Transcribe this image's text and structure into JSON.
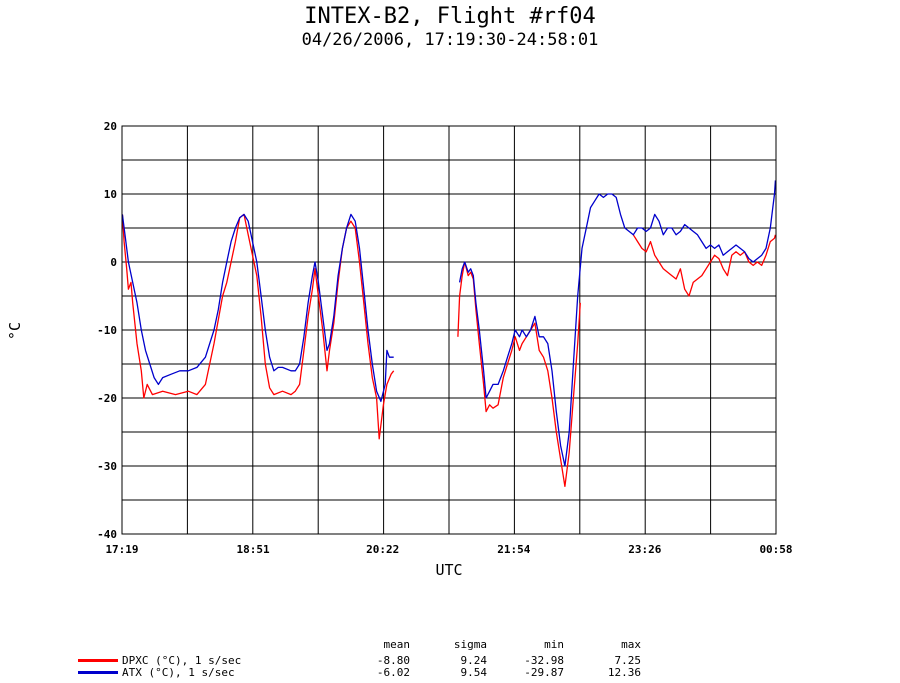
{
  "header": {
    "title": "INTEX-B2, Flight #rf04",
    "subtitle": "04/26/2006, 17:19:30-24:58:01"
  },
  "legend": {
    "stat_headers": [
      "mean",
      "sigma",
      "min",
      "max"
    ],
    "rows": [
      {
        "label": "DPXC (°C), 1 s/sec",
        "color": "#ff0000",
        "mean": "-8.80",
        "sigma": "9.24",
        "min": "-32.98",
        "max": "7.25"
      },
      {
        "label": "ATX (°C), 1 s/sec",
        "color": "#0000cc",
        "mean": "-6.02",
        "sigma": "9.54",
        "min": "-29.87",
        "max": "12.36"
      }
    ]
  },
  "chart_data": {
    "type": "line",
    "xlabel": "UTC",
    "ylabel": "°C",
    "xlim": [
      17.325,
      24.967
    ],
    "ylim": [
      -40,
      20
    ],
    "yticks": [
      -40,
      -30,
      -20,
      -10,
      0,
      10,
      20
    ],
    "xtick_labels": [
      {
        "value": 17.317,
        "label": "17:19"
      },
      {
        "value": 18.85,
        "label": "18:51"
      },
      {
        "value": 20.367,
        "label": "20:22"
      },
      {
        "value": 21.9,
        "label": "21:54"
      },
      {
        "value": 23.433,
        "label": "23:26"
      },
      {
        "value": 24.967,
        "label": "00:58"
      }
    ],
    "grid": true,
    "series": [
      {
        "name": "DPXC (°C), 1 s/sec",
        "color": "#ff0000",
        "segments": [
          [
            [
              17.33,
              7
            ],
            [
              17.35,
              3
            ],
            [
              17.38,
              -1
            ],
            [
              17.4,
              -4
            ],
            [
              17.43,
              -3
            ],
            [
              17.45,
              -6
            ],
            [
              17.5,
              -12
            ],
            [
              17.55,
              -16
            ],
            [
              17.58,
              -20
            ],
            [
              17.62,
              -18
            ],
            [
              17.68,
              -19.5
            ],
            [
              17.8,
              -19
            ],
            [
              17.95,
              -19.5
            ],
            [
              18.1,
              -19
            ],
            [
              18.2,
              -19.5
            ],
            [
              18.3,
              -18
            ],
            [
              18.4,
              -12
            ],
            [
              18.5,
              -5
            ],
            [
              18.55,
              -3
            ],
            [
              18.6,
              0
            ],
            [
              18.65,
              3
            ],
            [
              18.7,
              6.5
            ],
            [
              18.75,
              7
            ],
            [
              18.8,
              4
            ],
            [
              18.85,
              1
            ],
            [
              18.9,
              -2
            ],
            [
              18.95,
              -8
            ],
            [
              19.0,
              -15
            ],
            [
              19.05,
              -18.5
            ],
            [
              19.1,
              -19.5
            ],
            [
              19.2,
              -19
            ],
            [
              19.3,
              -19.5
            ],
            [
              19.35,
              -19
            ],
            [
              19.4,
              -18
            ],
            [
              19.45,
              -13
            ],
            [
              19.5,
              -8
            ],
            [
              19.55,
              -4
            ],
            [
              19.58,
              -1
            ],
            [
              19.62,
              -5
            ],
            [
              19.67,
              -10
            ],
            [
              19.72,
              -16
            ],
            [
              19.75,
              -13
            ],
            [
              19.8,
              -9
            ],
            [
              19.85,
              -3
            ],
            [
              19.9,
              2
            ],
            [
              19.95,
              5
            ],
            [
              20.0,
              6
            ],
            [
              20.05,
              5
            ],
            [
              20.1,
              0
            ],
            [
              20.15,
              -6
            ],
            [
              20.2,
              -12
            ],
            [
              20.25,
              -17
            ],
            [
              20.3,
              -20
            ],
            [
              20.33,
              -26
            ],
            [
              20.38,
              -21
            ],
            [
              20.42,
              -18
            ],
            [
              20.47,
              -16.5
            ],
            [
              20.5,
              -16
            ]
          ],
          [
            [
              21.25,
              -11
            ],
            [
              21.27,
              -5
            ],
            [
              21.3,
              -2
            ],
            [
              21.33,
              0
            ],
            [
              21.37,
              -2
            ],
            [
              21.4,
              -1.5
            ],
            [
              21.43,
              -2.5
            ],
            [
              21.46,
              -7
            ],
            [
              21.5,
              -12
            ],
            [
              21.55,
              -18
            ],
            [
              21.58,
              -22
            ],
            [
              21.62,
              -21
            ],
            [
              21.66,
              -21.5
            ],
            [
              21.72,
              -21
            ],
            [
              21.78,
              -17
            ],
            [
              21.83,
              -15
            ],
            [
              21.88,
              -13
            ],
            [
              21.92,
              -11
            ],
            [
              21.97,
              -13
            ],
            [
              22.0,
              -12
            ],
            [
              22.05,
              -11
            ],
            [
              22.1,
              -10
            ],
            [
              22.15,
              -9
            ],
            [
              22.2,
              -13
            ],
            [
              22.25,
              -14
            ],
            [
              22.3,
              -16
            ],
            [
              22.35,
              -20
            ],
            [
              22.4,
              -25
            ],
            [
              22.45,
              -29
            ],
            [
              22.5,
              -33
            ],
            [
              22.55,
              -28
            ],
            [
              22.6,
              -20
            ],
            [
              22.65,
              -12
            ],
            [
              22.68,
              -6
            ]
          ],
          [
            [
              23.3,
              4
            ],
            [
              23.35,
              3
            ],
            [
              23.4,
              2
            ],
            [
              23.45,
              1.5
            ],
            [
              23.5,
              3
            ],
            [
              23.55,
              1
            ],
            [
              23.6,
              0
            ],
            [
              23.65,
              -1
            ],
            [
              23.7,
              -1.5
            ],
            [
              23.75,
              -2
            ],
            [
              23.8,
              -2.5
            ],
            [
              23.85,
              -1
            ],
            [
              23.9,
              -4
            ],
            [
              23.95,
              -5
            ],
            [
              24.0,
              -3
            ],
            [
              24.05,
              -2.5
            ],
            [
              24.1,
              -2
            ],
            [
              24.15,
              -1
            ],
            [
              24.2,
              0
            ],
            [
              24.25,
              1
            ],
            [
              24.3,
              0.5
            ],
            [
              24.35,
              -1
            ],
            [
              24.4,
              -2
            ],
            [
              24.45,
              1
            ],
            [
              24.5,
              1.5
            ],
            [
              24.55,
              1
            ],
            [
              24.6,
              1.5
            ],
            [
              24.65,
              0
            ],
            [
              24.7,
              -0.5
            ],
            [
              24.75,
              0
            ],
            [
              24.8,
              -0.5
            ],
            [
              24.85,
              1
            ],
            [
              24.9,
              3
            ],
            [
              24.95,
              3.5
            ],
            [
              24.96,
              4
            ]
          ]
        ]
      },
      {
        "name": "ATX (°C), 1 s/sec",
        "color": "#0000cc",
        "segments": [
          [
            [
              17.33,
              7
            ],
            [
              17.36,
              4
            ],
            [
              17.4,
              0
            ],
            [
              17.45,
              -3
            ],
            [
              17.5,
              -6
            ],
            [
              17.55,
              -10
            ],
            [
              17.6,
              -13
            ],
            [
              17.65,
              -15
            ],
            [
              17.7,
              -17
            ],
            [
              17.75,
              -18
            ],
            [
              17.8,
              -17
            ],
            [
              17.9,
              -16.5
            ],
            [
              18.0,
              -16
            ],
            [
              18.1,
              -16
            ],
            [
              18.2,
              -15.5
            ],
            [
              18.3,
              -14
            ],
            [
              18.4,
              -10
            ],
            [
              18.45,
              -7
            ],
            [
              18.5,
              -3
            ],
            [
              18.55,
              0
            ],
            [
              18.6,
              3
            ],
            [
              18.65,
              5
            ],
            [
              18.7,
              6.5
            ],
            [
              18.75,
              7
            ],
            [
              18.8,
              6
            ],
            [
              18.85,
              3
            ],
            [
              18.9,
              0
            ],
            [
              18.95,
              -5
            ],
            [
              19.0,
              -10
            ],
            [
              19.05,
              -14
            ],
            [
              19.1,
              -16
            ],
            [
              19.15,
              -15.5
            ],
            [
              19.2,
              -15.5
            ],
            [
              19.3,
              -16
            ],
            [
              19.35,
              -16
            ],
            [
              19.4,
              -15
            ],
            [
              19.45,
              -11
            ],
            [
              19.5,
              -6
            ],
            [
              19.55,
              -2
            ],
            [
              19.58,
              0
            ],
            [
              19.62,
              -3
            ],
            [
              19.67,
              -8
            ],
            [
              19.72,
              -13
            ],
            [
              19.75,
              -12
            ],
            [
              19.8,
              -8
            ],
            [
              19.85,
              -2
            ],
            [
              19.9,
              2
            ],
            [
              19.95,
              5
            ],
            [
              20.0,
              7
            ],
            [
              20.05,
              6
            ],
            [
              20.1,
              2
            ],
            [
              20.15,
              -4
            ],
            [
              20.2,
              -10
            ],
            [
              20.25,
              -15
            ],
            [
              20.3,
              -19
            ],
            [
              20.35,
              -20.5
            ],
            [
              20.4,
              -18
            ],
            [
              20.42,
              -13
            ],
            [
              20.45,
              -14
            ],
            [
              20.5,
              -14
            ]
          ],
          [
            [
              21.27,
              -3
            ],
            [
              21.3,
              -1
            ],
            [
              21.33,
              0
            ],
            [
              21.37,
              -1.5
            ],
            [
              21.4,
              -1
            ],
            [
              21.43,
              -2
            ],
            [
              21.46,
              -6
            ],
            [
              21.5,
              -10
            ],
            [
              21.55,
              -16
            ],
            [
              21.58,
              -20
            ],
            [
              21.62,
              -19
            ],
            [
              21.66,
              -18
            ],
            [
              21.72,
              -18
            ],
            [
              21.78,
              -16
            ],
            [
              21.83,
              -14
            ],
            [
              21.88,
              -12
            ],
            [
              21.92,
              -10
            ],
            [
              21.97,
              -11
            ],
            [
              22.0,
              -10
            ],
            [
              22.05,
              -11
            ],
            [
              22.1,
              -10
            ],
            [
              22.15,
              -8
            ],
            [
              22.2,
              -11
            ],
            [
              22.25,
              -11
            ],
            [
              22.3,
              -12
            ],
            [
              22.35,
              -16
            ],
            [
              22.4,
              -22
            ],
            [
              22.45,
              -27
            ],
            [
              22.5,
              -30
            ],
            [
              22.55,
              -25
            ],
            [
              22.6,
              -15
            ],
            [
              22.65,
              -5
            ],
            [
              22.7,
              2
            ],
            [
              22.75,
              5
            ],
            [
              22.8,
              8
            ],
            [
              22.85,
              9
            ],
            [
              22.9,
              10
            ],
            [
              22.95,
              9.5
            ],
            [
              23.0,
              10
            ],
            [
              23.05,
              10
            ],
            [
              23.1,
              9.5
            ],
            [
              23.15,
              7
            ],
            [
              23.2,
              5
            ],
            [
              23.25,
              4.5
            ],
            [
              23.3,
              4
            ],
            [
              23.35,
              5
            ],
            [
              23.4,
              5
            ],
            [
              23.45,
              4.5
            ],
            [
              23.5,
              5
            ],
            [
              23.55,
              7
            ],
            [
              23.6,
              6
            ],
            [
              23.65,
              4
            ],
            [
              23.7,
              5
            ],
            [
              23.75,
              5
            ],
            [
              23.8,
              4
            ],
            [
              23.85,
              4.5
            ],
            [
              23.9,
              5.5
            ],
            [
              23.95,
              5
            ],
            [
              24.0,
              4.5
            ],
            [
              24.05,
              4
            ],
            [
              24.1,
              3
            ],
            [
              24.15,
              2
            ],
            [
              24.2,
              2.5
            ],
            [
              24.25,
              2
            ],
            [
              24.3,
              2.5
            ],
            [
              24.35,
              1
            ],
            [
              24.4,
              1.5
            ],
            [
              24.45,
              2
            ],
            [
              24.5,
              2.5
            ],
            [
              24.55,
              2
            ],
            [
              24.6,
              1.5
            ],
            [
              24.65,
              0.5
            ],
            [
              24.7,
              0
            ],
            [
              24.75,
              0.5
            ],
            [
              24.8,
              1
            ],
            [
              24.85,
              2
            ],
            [
              24.9,
              5
            ],
            [
              24.93,
              8
            ],
            [
              24.95,
              10
            ],
            [
              24.96,
              12
            ]
          ]
        ]
      }
    ]
  }
}
